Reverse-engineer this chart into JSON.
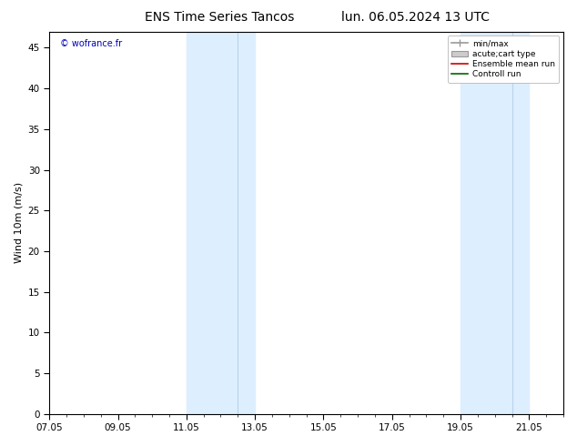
{
  "title_left": "ENS Time Series Tancos",
  "title_right": "lun. 06.05.2024 13 UTC",
  "ylabel": "Wind 10m (m/s)",
  "watermark": "© wofrance.fr",
  "ylim": [
    0,
    47
  ],
  "yticks": [
    0,
    5,
    10,
    15,
    20,
    25,
    30,
    35,
    40,
    45
  ],
  "xtick_labels": [
    "07.05",
    "09.05",
    "11.05",
    "13.05",
    "15.05",
    "17.05",
    "19.05",
    "21.05"
  ],
  "xtick_positions": [
    0,
    2,
    4,
    6,
    8,
    10,
    12,
    14
  ],
  "background_color": "#ffffff",
  "plot_bg_color": "#ffffff",
  "shaded_bands": [
    {
      "x_start": 4.0,
      "x_end": 5.5
    },
    {
      "x_start": 5.5,
      "x_end": 6.0
    },
    {
      "x_start": 12.0,
      "x_end": 13.5
    },
    {
      "x_start": 13.5,
      "x_end": 14.0
    }
  ],
  "band_color": "#ddeeff",
  "band_edge_color": "#b8d4ea",
  "legend_labels": [
    "min/max",
    "acute;cart type",
    "Ensemble mean run",
    "Controll run"
  ],
  "title_fontsize": 10,
  "label_fontsize": 8,
  "tick_fontsize": 7.5
}
